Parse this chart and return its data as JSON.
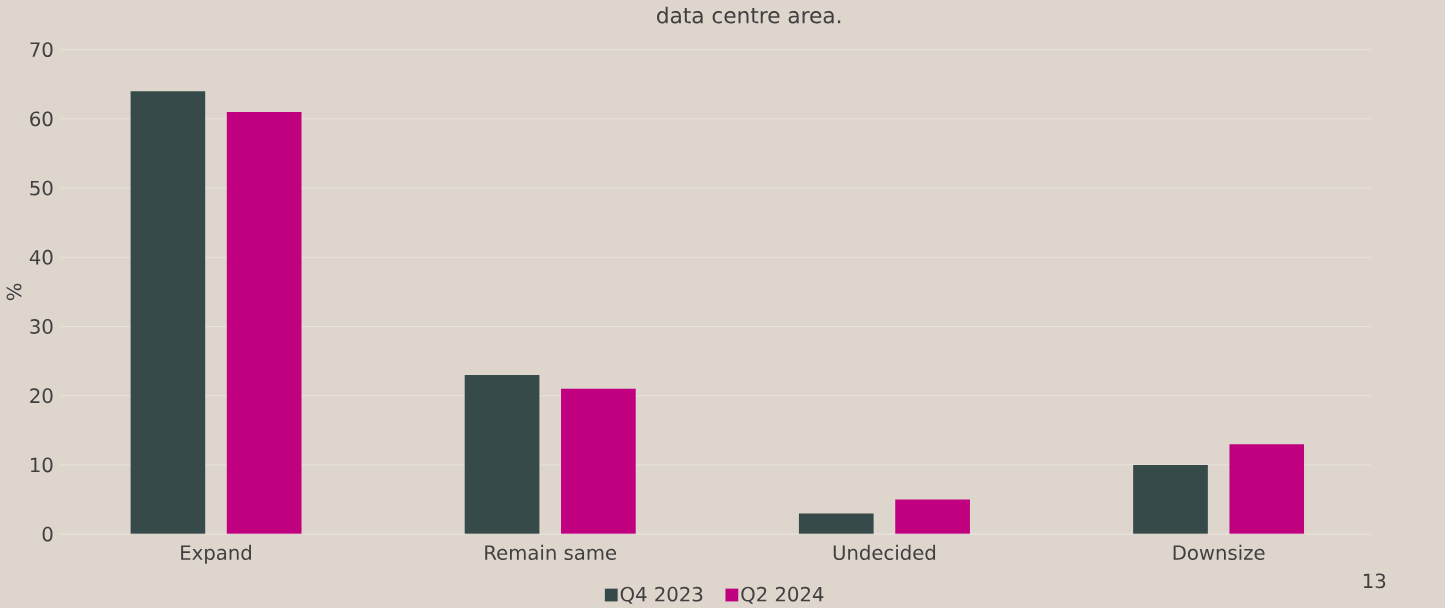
{
  "chart_data": {
    "type": "bar",
    "title": "data centre area.",
    "ylabel": "%",
    "categories": [
      "Expand",
      "Remain same",
      "Undecided",
      "Downsize"
    ],
    "series": [
      {
        "name": "Q4 2023",
        "color": "#364a49",
        "values": [
          64,
          23,
          3,
          10
        ]
      },
      {
        "name": "Q2 2024",
        "color": "#c0007f",
        "values": [
          61,
          21,
          5,
          13
        ]
      }
    ],
    "ylim": [
      0,
      70
    ],
    "yticks": [
      0,
      10,
      20,
      30,
      40,
      50,
      60,
      70
    ],
    "grid": "y",
    "legend": "bottom",
    "annotations": [
      "13"
    ]
  }
}
